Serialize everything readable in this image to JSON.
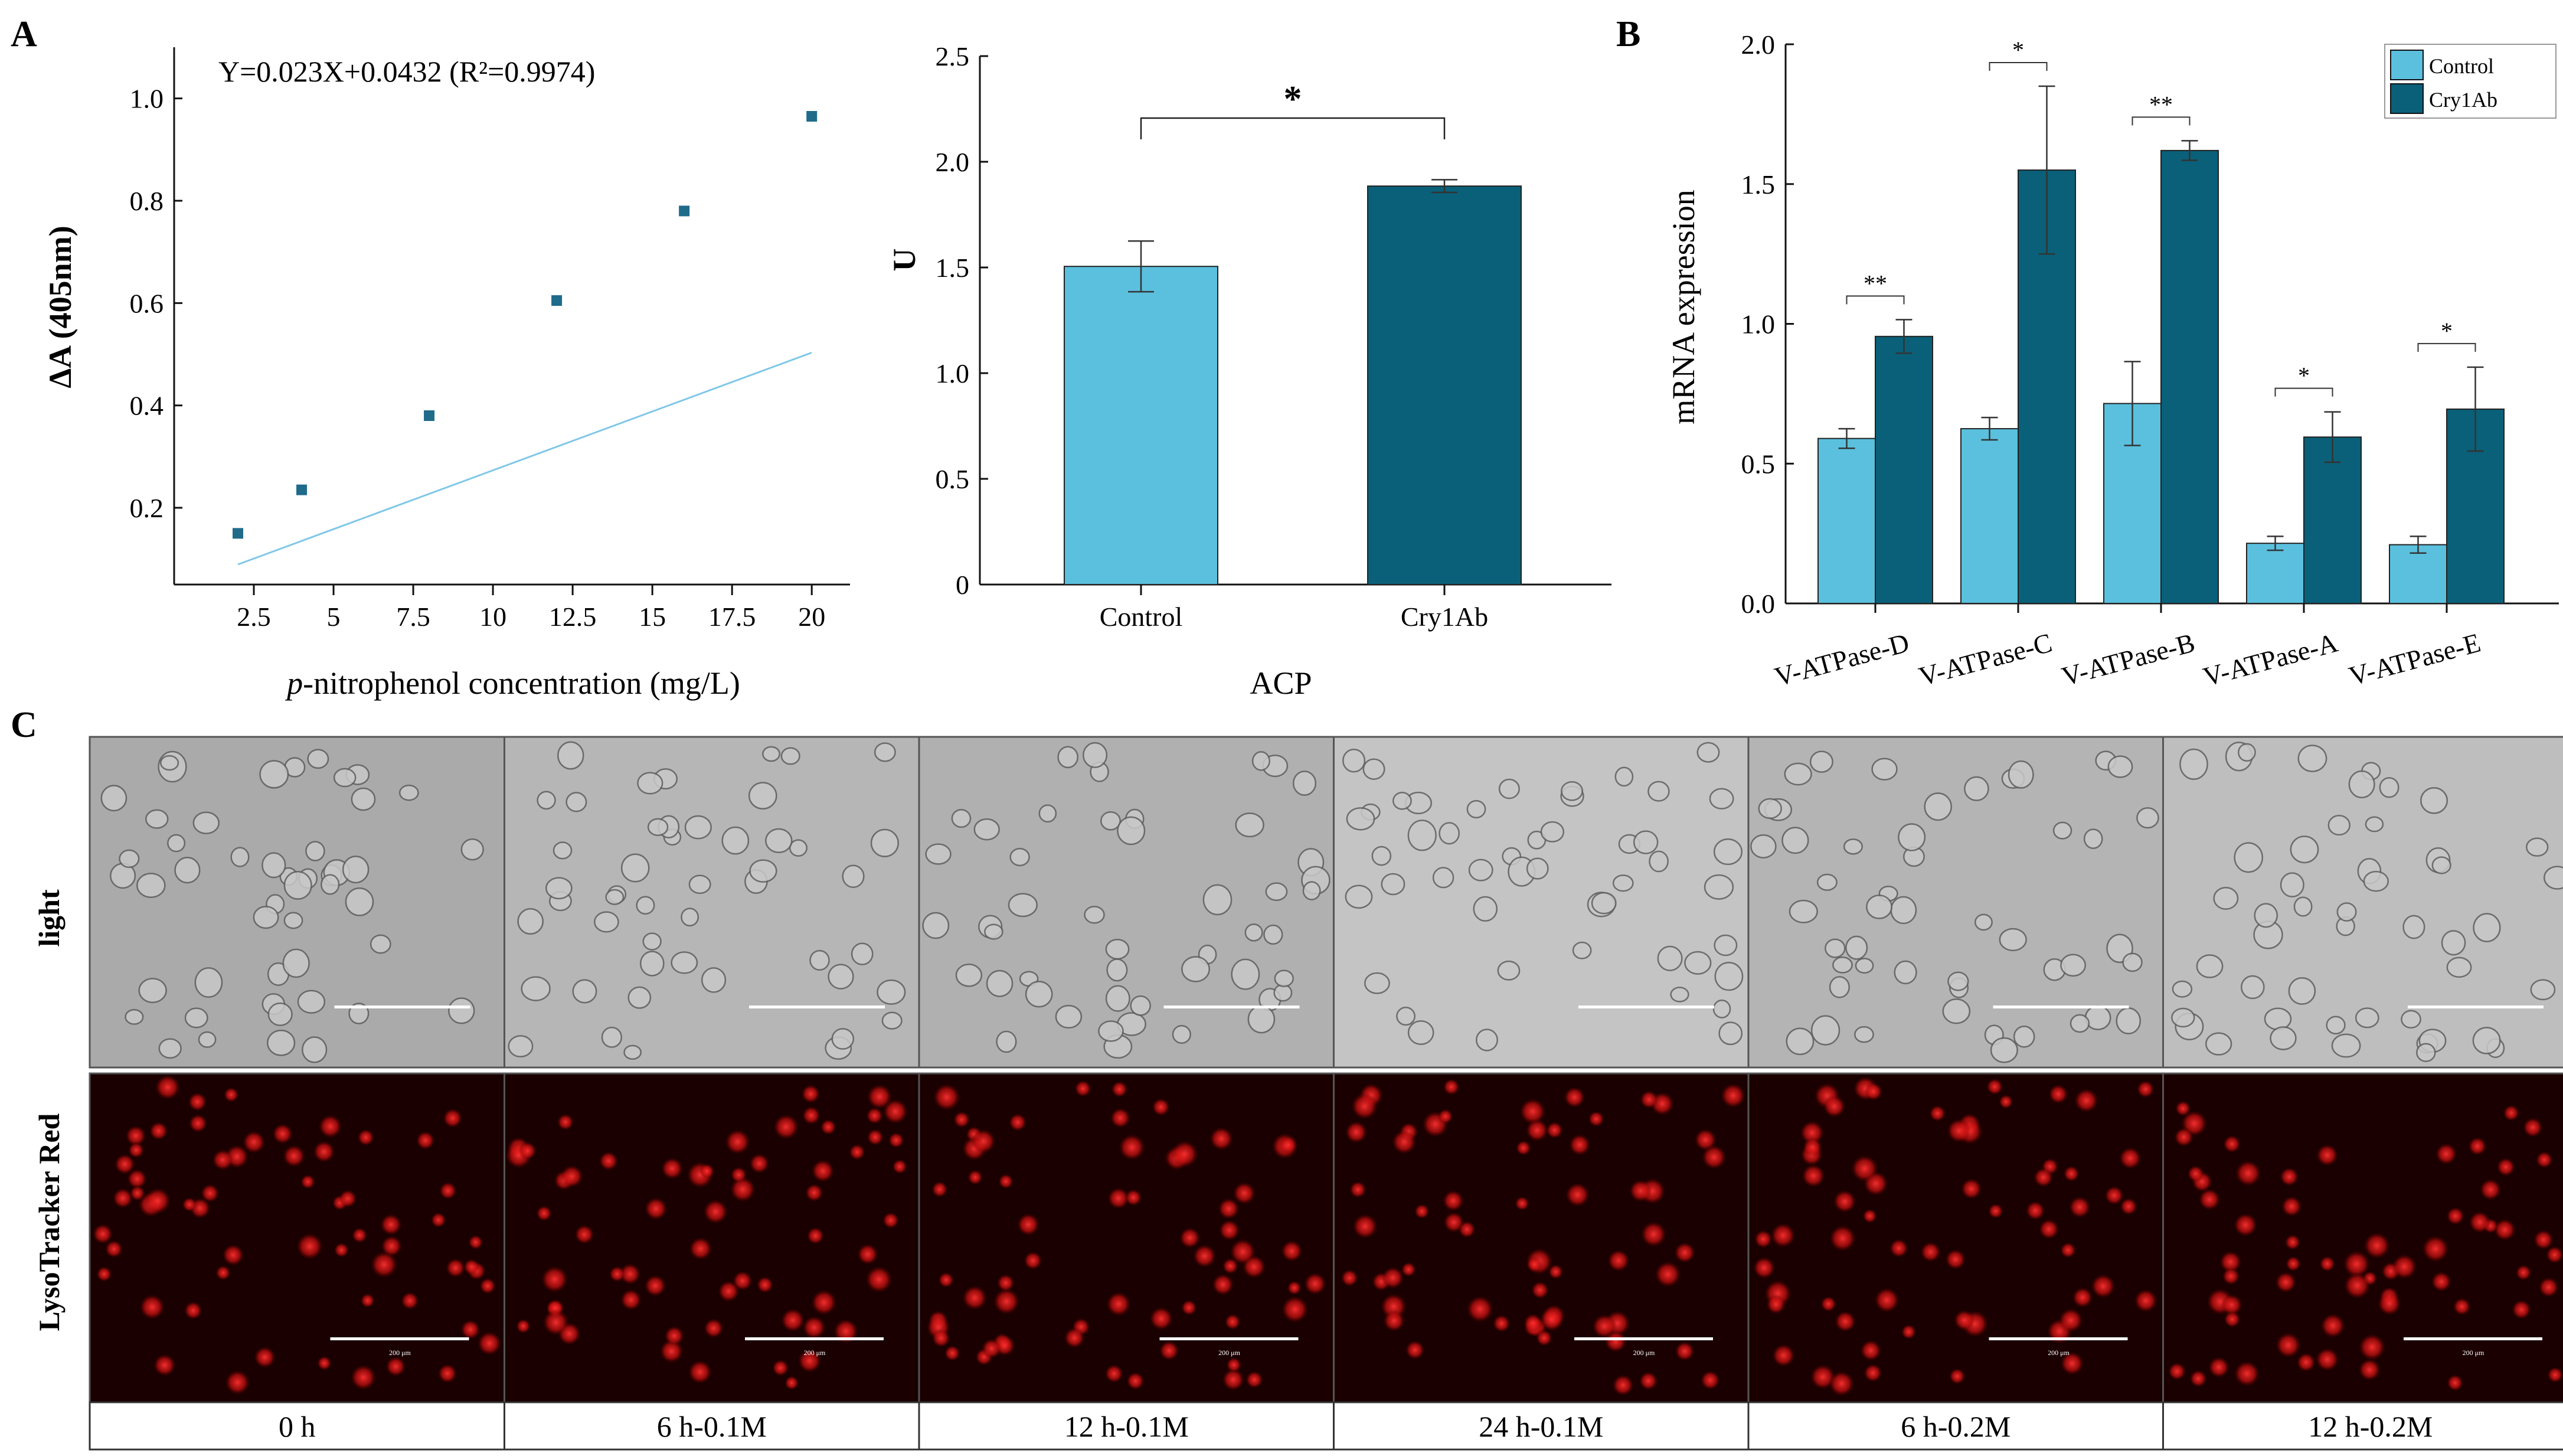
{
  "panels": {
    "a_label": "A",
    "b_label": "B",
    "c_label": "C"
  },
  "colors": {
    "axis": "#111111",
    "std_point": "#1f6b8a",
    "std_line": "#7fc7e8",
    "control_fill": "#5bc0de",
    "cry1ab_fill": "#0a6079",
    "micro_light": "#a9a9a9",
    "micro_red": "#1a0000"
  },
  "chart_data": [
    {
      "id": "standard-curve",
      "type": "scatter",
      "equation": "Y=0.023X+0.0432 (R²=0.9974)",
      "xlabel_italic": "p",
      "xlabel_rest": "-nitrophenol concentration (mg/L)",
      "ylabel": "ΔA (405nm)",
      "x": [
        2,
        4,
        8,
        12,
        16,
        20
      ],
      "y": [
        0.15,
        0.235,
        0.38,
        0.605,
        0.78,
        0.965
      ],
      "fit": {
        "slope": 0.023,
        "intercept": 0.0432
      },
      "xlim": [
        0,
        21.2
      ],
      "ylim": [
        0.05,
        1.1
      ],
      "xticks": [
        2.5,
        5,
        7.5,
        10,
        12.5,
        15,
        17.5,
        20
      ],
      "xtick_labels": [
        "2.5",
        "5",
        "7.5",
        "10",
        "12.5",
        "15",
        "17.5",
        "20"
      ],
      "yticks": [
        0.2,
        0.4,
        0.6,
        0.8,
        1.0
      ],
      "ytick_labels": [
        "0.2",
        "0.4",
        "0.6",
        "0.8",
        "1.0"
      ]
    },
    {
      "id": "acp-activity",
      "type": "bar",
      "title": "ACP",
      "ylabel": "U",
      "categories": [
        "Control",
        "Cry1Ab"
      ],
      "values": [
        1.505,
        1.885
      ],
      "errors": [
        0.12,
        0.03
      ],
      "ylim": [
        0,
        2.5
      ],
      "yticks": [
        0,
        0.5,
        1.0,
        1.5,
        2.0,
        2.5
      ],
      "ytick_labels": [
        "0",
        "0.5",
        "1.0",
        "1.5",
        "2.0",
        "2.5"
      ],
      "significance": "*"
    },
    {
      "id": "v-atpase-expression",
      "type": "bar",
      "ylabel": "mRNA expression",
      "categories": [
        "V-ATPase-D",
        "V-ATPase-C",
        "V-ATPase-B",
        "V-ATPase-A",
        "V-ATPase-E"
      ],
      "series": [
        {
          "name": "Control",
          "values": [
            0.59,
            0.625,
            0.715,
            0.215,
            0.21
          ],
          "errors": [
            0.035,
            0.04,
            0.15,
            0.025,
            0.03
          ]
        },
        {
          "name": "Cry1Ab",
          "values": [
            0.955,
            1.55,
            1.62,
            0.595,
            0.695
          ],
          "errors": [
            0.06,
            0.3,
            0.035,
            0.09,
            0.15
          ]
        }
      ],
      "significance": [
        "**",
        "*",
        "**",
        "*",
        "*"
      ],
      "ylim": [
        0,
        2.0
      ],
      "yticks": [
        0,
        0.5,
        1.0,
        1.5,
        2.0
      ],
      "ytick_labels": [
        "0.0",
        "0.5",
        "1.0",
        "1.5",
        "2.0"
      ]
    }
  ],
  "microscopy": {
    "row_labels": [
      "light",
      "LysoTracker Red"
    ],
    "conditions": [
      "0 h",
      "6 h-0.1M",
      "12 h-0.1M",
      "24 h-0.1M",
      "6 h-0.2M",
      "12 h-0.2M"
    ],
    "scale_text": "200 μm"
  }
}
